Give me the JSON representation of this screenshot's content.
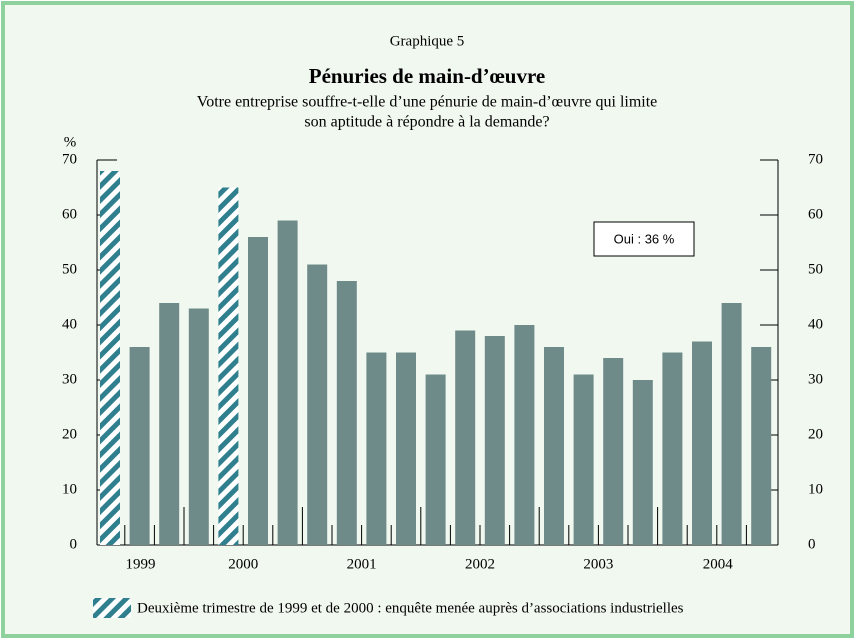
{
  "chart_data": {
    "type": "bar",
    "header": "Graphique 5",
    "title": "Pénuries de main-d’œuvre",
    "subtitle": [
      "Votre entreprise souffre-t-elle d’une pénurie de main-d’œuvre qui limite",
      "son aptitude à répondre à la demande?"
    ],
    "y_unit": "%",
    "x_labels": [
      "1999",
      "2000",
      "2001",
      "2002",
      "2003",
      "2004"
    ],
    "values": [
      68,
      36,
      44,
      43,
      65,
      56,
      59,
      51,
      48,
      35,
      35,
      31,
      39,
      38,
      40,
      36,
      31,
      34,
      30,
      35,
      37,
      44,
      36
    ],
    "hatched": [
      0,
      4
    ],
    "color": "#6f8b89",
    "hatch_color": "#2f7f8e",
    "ylim": [
      0,
      70
    ],
    "yticks": [
      0,
      10,
      20,
      30,
      40,
      50,
      60,
      70
    ],
    "annotation": "Oui : 36 %",
    "legend": "Deuxième trimestre de 1999 et de 2000 : enquête menée auprès d’associations industrielles"
  }
}
